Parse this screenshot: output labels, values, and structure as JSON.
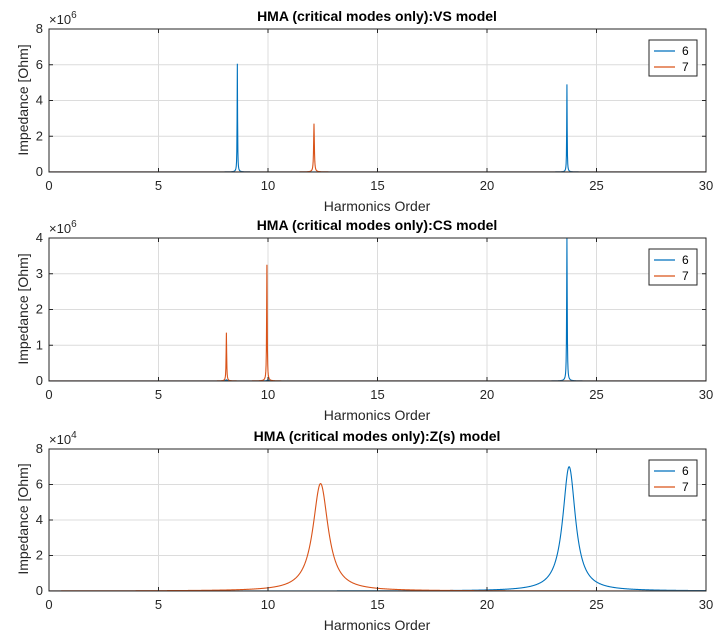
{
  "chart_data": [
    {
      "type": "line",
      "title": "HMA (critical modes only):VS model",
      "xlabel": "Harmonics Order",
      "ylabel": "Impedance [Ohm]",
      "exponent": "6",
      "xlim": [
        0,
        30
      ],
      "ylim": [
        0,
        8
      ],
      "xticks": [
        0,
        5,
        10,
        15,
        20,
        25,
        30
      ],
      "yticks": [
        0,
        2,
        4,
        6,
        8
      ],
      "grid": true,
      "legend_position": "top-right",
      "series": [
        {
          "name": "6",
          "color": "#0072BD",
          "base": 0.005,
          "peaks": [
            {
              "x": 8.6,
              "y": 6.05,
              "w": 0.012
            },
            {
              "x": 23.65,
              "y": 4.9,
              "w": 0.012
            }
          ]
        },
        {
          "name": "7",
          "color": "#D95319",
          "base": 0.005,
          "peaks": [
            {
              "x": 12.1,
              "y": 2.7,
              "w": 0.02
            }
          ]
        }
      ]
    },
    {
      "type": "line",
      "title": "HMA (critical modes only):CS model",
      "xlabel": "Harmonics Order",
      "ylabel": "Impedance [Ohm]",
      "exponent": "6",
      "xlim": [
        0,
        30
      ],
      "ylim": [
        0,
        4
      ],
      "xticks": [
        0,
        5,
        10,
        15,
        20,
        25,
        30
      ],
      "yticks": [
        0,
        1,
        2,
        3,
        4
      ],
      "grid": true,
      "legend_position": "top-right",
      "series": [
        {
          "name": "6",
          "color": "#0072BD",
          "base": 0.002,
          "peaks": [
            {
              "x": 23.65,
              "y": 4.0,
              "w": 0.015
            },
            {
              "x": 8.1,
              "y": 0.03,
              "w": 0.05
            },
            {
              "x": 10.0,
              "y": 0.03,
              "w": 0.05
            }
          ]
        },
        {
          "name": "7",
          "color": "#D95319",
          "base": 0.002,
          "peaks": [
            {
              "x": 8.1,
              "y": 1.35,
              "w": 0.015
            },
            {
              "x": 9.95,
              "y": 3.25,
              "w": 0.015
            }
          ]
        }
      ]
    },
    {
      "type": "line",
      "title": "HMA (critical modes only):Z(s) model",
      "xlabel": "Harmonics Order",
      "ylabel": "Impedance [Ohm]",
      "exponent": "4",
      "xlim": [
        0,
        30
      ],
      "ylim": [
        0,
        8
      ],
      "xticks": [
        0,
        5,
        10,
        15,
        20,
        25,
        30
      ],
      "yticks": [
        0,
        2,
        4,
        6,
        8
      ],
      "grid": true,
      "legend_position": "top-right",
      "series": [
        {
          "name": "6",
          "color": "#0072BD",
          "base": 0.0,
          "peaks": [
            {
              "x": 23.75,
              "y": 7.0,
              "w": 0.35
            }
          ]
        },
        {
          "name": "7",
          "color": "#D95319",
          "base": 0.0,
          "peaks": [
            {
              "x": 12.4,
              "y": 6.05,
              "w": 0.42
            }
          ]
        }
      ]
    }
  ]
}
